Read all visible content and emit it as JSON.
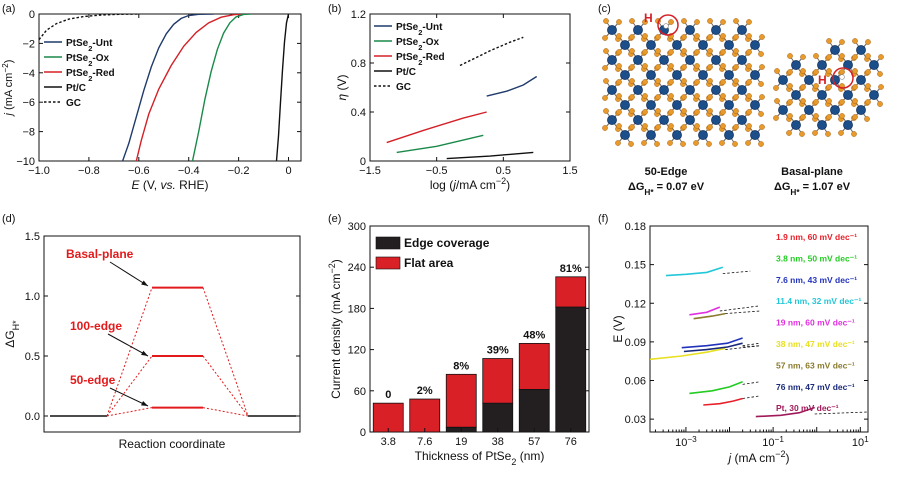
{
  "panel_labels": [
    "(a)",
    "(b)",
    "(c)",
    "(d)",
    "(e)",
    "(f)"
  ],
  "chart_data": [
    {
      "panel": "(a)",
      "type": "line",
      "xlabel_pre": "E",
      "xlabel_rest": " (V, ",
      "xlabel_ital": "vs.",
      "xlabel_post": " RHE)",
      "ylabel_j": "j",
      "ylabel_unit": " (mA cm",
      "ylabel_sup": "−2",
      "ylabel_close": ")",
      "xlim": [
        -1.0,
        0.05
      ],
      "ylim": [
        -10,
        0
      ],
      "xticks": [
        "−1.0",
        "−0.8",
        "−0.6",
        "−0.4",
        "−0.2",
        "0"
      ],
      "xtick_values": [
        -1.0,
        -0.8,
        -0.6,
        -0.4,
        -0.2,
        0
      ],
      "yticks": [
        "0",
        "−2",
        "−4",
        "−6",
        "−8",
        "−10"
      ],
      "ytick_values": [
        0,
        -2,
        -4,
        -6,
        -8,
        -10
      ],
      "legend": [
        {
          "pre": "PtSe",
          "sub": "2",
          "post": "-Unt",
          "color": "#1f3a6b",
          "dash": false
        },
        {
          "pre": "PtSe",
          "sub": "2",
          "post": "-Ox",
          "color": "#1a8a4a",
          "dash": false
        },
        {
          "pre": "PtSe",
          "sub": "2",
          "post": "-Red",
          "color": "#d42027",
          "dash": false
        },
        {
          "pre": "Pt/C",
          "sub": "",
          "post": "",
          "color": "#111111",
          "dash": false
        },
        {
          "pre": "GC",
          "sub": "",
          "post": "",
          "color": "#111111",
          "dash": true
        }
      ],
      "series": [
        {
          "color": "#1f3a6b",
          "dash": false,
          "points": [
            [
              -0.665,
              -10
            ],
            [
              -0.64,
              -8.8
            ],
            [
              -0.61,
              -7.0
            ],
            [
              -0.58,
              -5.2
            ],
            [
              -0.55,
              -3.6
            ],
            [
              -0.52,
              -2.3
            ],
            [
              -0.49,
              -1.35
            ],
            [
              -0.46,
              -0.7
            ],
            [
              -0.43,
              -0.3
            ],
            [
              -0.4,
              -0.1
            ],
            [
              -0.36,
              -0.02
            ],
            [
              -0.3,
              0
            ]
          ]
        },
        {
          "color": "#d42027",
          "dash": false,
          "points": [
            [
              -0.61,
              -10
            ],
            [
              -0.59,
              -8.6
            ],
            [
              -0.56,
              -6.8
            ],
            [
              -0.52,
              -5.1
            ],
            [
              -0.47,
              -3.5
            ],
            [
              -0.42,
              -2.2
            ],
            [
              -0.37,
              -1.25
            ],
            [
              -0.32,
              -0.6
            ],
            [
              -0.27,
              -0.22
            ],
            [
              -0.22,
              -0.05
            ],
            [
              -0.18,
              0
            ]
          ]
        },
        {
          "color": "#1a8a4a",
          "dash": false,
          "points": [
            [
              -0.385,
              -10
            ],
            [
              -0.36,
              -8.0
            ],
            [
              -0.335,
              -5.8
            ],
            [
              -0.31,
              -3.9
            ],
            [
              -0.285,
              -2.4
            ],
            [
              -0.26,
              -1.3
            ],
            [
              -0.235,
              -0.6
            ],
            [
              -0.21,
              -0.2
            ],
            [
              -0.18,
              -0.03
            ],
            [
              -0.15,
              0
            ]
          ]
        },
        {
          "color": "#111111",
          "dash": false,
          "points": [
            [
              -0.048,
              -10
            ],
            [
              -0.04,
              -8.3
            ],
            [
              -0.032,
              -6.0
            ],
            [
              -0.024,
              -3.8
            ],
            [
              -0.016,
              -1.9
            ],
            [
              -0.008,
              -0.6
            ],
            [
              0,
              0
            ]
          ]
        },
        {
          "color": "#111111",
          "dash": true,
          "points": [
            [
              -1.0,
              -1.75
            ],
            [
              -0.97,
              -1.1
            ],
            [
              -0.93,
              -0.65
            ],
            [
              -0.88,
              -0.35
            ],
            [
              -0.82,
              -0.17
            ],
            [
              -0.75,
              -0.07
            ],
            [
              -0.68,
              -0.02
            ],
            [
              -0.6,
              0
            ]
          ]
        }
      ]
    },
    {
      "panel": "(b)",
      "type": "line",
      "xlabel_pre": "log (",
      "xlabel_ital": "j",
      "xlabel_post": "/mA cm",
      "xlabel_sup": "−2",
      "xlabel_close": ")",
      "ylabel_eta": "η",
      "ylabel_unit": " (V)",
      "xlim": [
        -1.5,
        1.5
      ],
      "ylim": [
        0,
        1.2
      ],
      "xticks": [
        "−1.5",
        "−0.5",
        "0.5",
        "1.5"
      ],
      "xtick_values": [
        -1.5,
        -0.5,
        0.5,
        1.5
      ],
      "yticks": [
        "0",
        "0.4",
        "0.8",
        "1.2"
      ],
      "ytick_values": [
        0,
        0.4,
        0.8,
        1.2
      ],
      "legend": [
        {
          "pre": "PtSe",
          "sub": "2",
          "post": "-Unt",
          "color": "#1f3a6b",
          "dash": false
        },
        {
          "pre": "PtSe",
          "sub": "2",
          "post": "-Ox",
          "color": "#1a8a4a",
          "dash": false
        },
        {
          "pre": "PtSe",
          "sub": "2",
          "post": "-Red",
          "color": "#d42027",
          "dash": false
        },
        {
          "pre": "Pt/C",
          "sub": "",
          "post": "",
          "color": "#111111",
          "dash": false
        },
        {
          "pre": "GC",
          "sub": "",
          "post": "",
          "color": "#111111",
          "dash": true
        }
      ],
      "series": [
        {
          "color": "#1f3a6b",
          "dash": false,
          "points": [
            [
              0.25,
              0.53
            ],
            [
              0.55,
              0.57
            ],
            [
              0.8,
              0.62
            ],
            [
              1.0,
              0.69
            ]
          ]
        },
        {
          "color": "#d42027",
          "dash": false,
          "points": [
            [
              -1.25,
              0.15
            ],
            [
              -0.7,
              0.25
            ],
            [
              -0.1,
              0.35
            ],
            [
              0.25,
              0.4
            ]
          ]
        },
        {
          "color": "#1a8a4a",
          "dash": false,
          "points": [
            [
              -1.1,
              0.07
            ],
            [
              -0.5,
              0.12
            ],
            [
              0.2,
              0.21
            ]
          ]
        },
        {
          "color": "#111111",
          "dash": false,
          "points": [
            [
              -0.35,
              0.02
            ],
            [
              0.3,
              0.04
            ],
            [
              0.95,
              0.07
            ]
          ]
        },
        {
          "color": "#111111",
          "dash": true,
          "points": [
            [
              -0.15,
              0.78
            ],
            [
              0.3,
              0.9
            ],
            [
              0.6,
              0.97
            ],
            [
              0.8,
              1.01
            ]
          ]
        }
      ]
    },
    {
      "panel": "(d)",
      "type": "line",
      "xlabel": "Reaction coordinate",
      "ylabel_delta": "ΔG",
      "ylabel_sub": "H*",
      "ylim": [
        0,
        1.5
      ],
      "yticks": [
        "0.0",
        "0.5",
        "1.0",
        "1.5"
      ],
      "ytick_values": [
        0,
        0.5,
        1.0,
        1.5
      ],
      "levels": [
        {
          "label": "Basal-plane",
          "value": 1.07
        },
        {
          "label": "100-edge",
          "value": 0.5
        },
        {
          "label": "50-edge",
          "value": 0.07
        }
      ]
    },
    {
      "panel": "(e)",
      "type": "bar",
      "categories": [
        "3.8",
        "7.6",
        "19",
        "38",
        "57",
        "76"
      ],
      "series": [
        {
          "name": "Edge coverage",
          "color": "#231f20",
          "values": [
            0,
            0,
            7,
            42,
            62,
            182
          ]
        },
        {
          "name": "Flat area",
          "color": "#d92027",
          "values": [
            42,
            48,
            77,
            65,
            67,
            44
          ]
        }
      ],
      "bar_labels": [
        "0",
        "2%",
        "8%",
        "39%",
        "48%",
        "81%"
      ],
      "xlabel_pre": "Thickness of PtSe",
      "xlabel_sub": "2",
      "xlabel_post": " (nm)",
      "ylabel_pre": "Current density (mA cm",
      "ylabel_sup": "−2",
      "ylabel_post": ")",
      "ylim": [
        0,
        300
      ],
      "yticks": [
        "0",
        "60",
        "120",
        "180",
        "240",
        "300"
      ],
      "ytick_values": [
        0,
        60,
        120,
        180,
        240,
        300
      ]
    },
    {
      "panel": "(f)",
      "type": "line",
      "xscale": "log",
      "xlabel_ital": "j",
      "xlabel_post": " (mA cm",
      "xlabel_sup": "−2",
      "xlabel_close": ")",
      "ylabel": "E (V)",
      "xlim": [
        0.00015,
        15
      ],
      "ylim": [
        0.02,
        0.18
      ],
      "xticks": [
        {
          "base": "10",
          "exp": "−3",
          "v": 0.001
        },
        {
          "base": "10",
          "exp": "−1",
          "v": 0.1
        },
        {
          "base": "10",
          "exp": "1",
          "v": 10
        }
      ],
      "yticks": [
        "0.03",
        "0.06",
        "0.09",
        "0.12",
        "0.15",
        "0.18"
      ],
      "ytick_values": [
        0.03,
        0.06,
        0.09,
        0.12,
        0.15,
        0.18
      ],
      "legend": [
        {
          "text": "1.9 nm, 60 mV dec⁻¹",
          "color": "#e8202a"
        },
        {
          "text": "3.8 nm, 50 mV dec⁻¹",
          "color": "#22cc22"
        },
        {
          "text": "7.6 nm, 43 mV dec⁻¹",
          "color": "#2233bb"
        },
        {
          "text": "11.4 nm, 32 mV dec⁻¹",
          "color": "#22c8d8"
        },
        {
          "text": "19 nm, 60 mV dec⁻¹",
          "color": "#e030e0"
        },
        {
          "text": "38 nm, 47 mV dec⁻¹",
          "color": "#e8e020"
        },
        {
          "text": "57 nm, 63 mV dec⁻¹",
          "color": "#8a7a2a"
        },
        {
          "text": "76 nm, 47 mV dec⁻¹",
          "color": "#1a2a7a"
        },
        {
          "text": "Pt, 30 mV dec⁻¹",
          "color": "#a01a5a"
        }
      ],
      "series": [
        {
          "color": "#e8202a",
          "points": [
            [
              0.0025,
              0.041
            ],
            [
              0.006,
              0.042
            ],
            [
              0.012,
              0.044
            ],
            [
              0.02,
              0.046
            ]
          ],
          "fit": [
            [
              0.02,
              0.046
            ],
            [
              0.05,
              0.048
            ]
          ]
        },
        {
          "color": "#22cc22",
          "points": [
            [
              0.0012,
              0.05
            ],
            [
              0.004,
              0.052
            ],
            [
              0.01,
              0.055
            ],
            [
              0.02,
              0.059
            ]
          ],
          "fit": [
            [
              0.02,
              0.057
            ],
            [
              0.05,
              0.059
            ]
          ]
        },
        {
          "color": "#2233bb",
          "points": [
            [
              0.0008,
              0.0855
            ],
            [
              0.003,
              0.087
            ],
            [
              0.009,
              0.089
            ],
            [
              0.02,
              0.093
            ]
          ],
          "fit": [
            [
              0.02,
              0.087
            ],
            [
              0.05,
              0.089
            ]
          ]
        },
        {
          "color": "#22c8d8",
          "points": [
            [
              0.00035,
              0.1415
            ],
            [
              0.001,
              0.1425
            ],
            [
              0.003,
              0.144
            ],
            [
              0.007,
              0.148
            ]
          ],
          "fit": [
            [
              0.007,
              0.143
            ],
            [
              0.03,
              0.145
            ]
          ]
        },
        {
          "color": "#e030e0",
          "points": [
            [
              0.0012,
              0.111
            ],
            [
              0.003,
              0.113
            ],
            [
              0.006,
              0.117
            ]
          ],
          "fit": [
            [
              0.006,
              0.114
            ],
            [
              0.05,
              0.118
            ]
          ]
        },
        {
          "color": "#e8e020",
          "points": [
            [
              0.00015,
              0.0765
            ],
            [
              0.0008,
              0.079
            ],
            [
              0.003,
              0.082
            ],
            [
              0.008,
              0.085
            ]
          ],
          "fit": [
            [
              0.008,
              0.084
            ],
            [
              0.05,
              0.087
            ]
          ]
        },
        {
          "color": "#8a7a2a",
          "points": [
            [
              0.0015,
              0.108
            ],
            [
              0.004,
              0.11
            ],
            [
              0.008,
              0.112
            ]
          ],
          "fit": [
            [
              0.008,
              0.112
            ],
            [
              0.05,
              0.114
            ]
          ]
        },
        {
          "color": "#1a2a7a",
          "points": [
            [
              0.0009,
              0.0825
            ],
            [
              0.003,
              0.084
            ],
            [
              0.009,
              0.086
            ],
            [
              0.02,
              0.089
            ]
          ],
          "fit": [
            [
              0.02,
              0.086
            ],
            [
              0.05,
              0.087
            ]
          ]
        },
        {
          "color": "#a01a5a",
          "points": [
            [
              0.04,
              0.032
            ],
            [
              0.15,
              0.033
            ],
            [
              0.4,
              0.035
            ],
            [
              0.9,
              0.039
            ]
          ],
          "fit": [
            [
              0.9,
              0.034
            ],
            [
              15,
              0.0355
            ]
          ]
        }
      ]
    }
  ],
  "panel_c": {
    "labels": [
      {
        "title": "50-Edge",
        "dg_pre": "ΔG",
        "dg_sub": "H*",
        "dg_post": " = 0.07 eV"
      },
      {
        "title": "Basal-plane",
        "dg_pre": "ΔG",
        "dg_sub": "H*",
        "dg_post": " = 1.07 eV"
      }
    ],
    "h_label": "H",
    "colors": {
      "pt": "#1c4e8a",
      "se": "#e89a2a",
      "bond": "#666666",
      "h": "#d42027"
    }
  }
}
